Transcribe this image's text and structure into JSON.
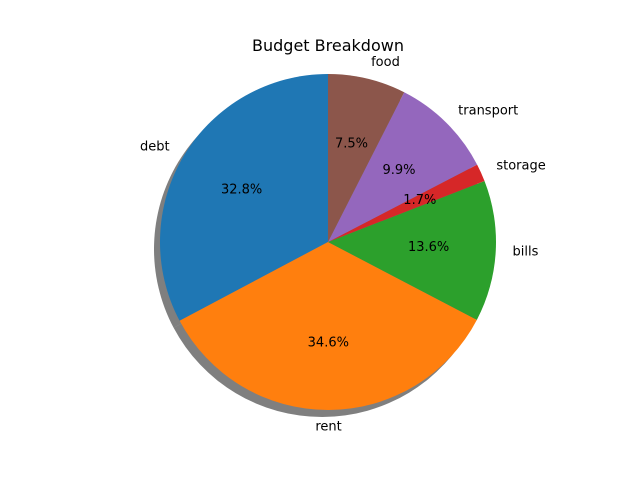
{
  "chart_data": {
    "type": "pie",
    "title": "Budget Breakdown",
    "shadow": true,
    "start_angle_deg": 90,
    "direction": "counterclockwise",
    "slices": [
      {
        "label": "debt",
        "value": 32.8,
        "pct_label": "32.8%",
        "color": "#1f77b4"
      },
      {
        "label": "rent",
        "value": 34.6,
        "pct_label": "34.6%",
        "color": "#ff7f0e"
      },
      {
        "label": "bills",
        "value": 13.6,
        "pct_label": "13.6%",
        "color": "#2ca02c"
      },
      {
        "label": "storage",
        "value": 1.7,
        "pct_label": "1.7%",
        "color": "#d62728"
      },
      {
        "label": "transport",
        "value": 9.9,
        "pct_label": "9.9%",
        "color": "#9467bd"
      },
      {
        "label": "food",
        "value": 7.5,
        "pct_label": "7.5%",
        "color": "#8c564b"
      }
    ]
  }
}
